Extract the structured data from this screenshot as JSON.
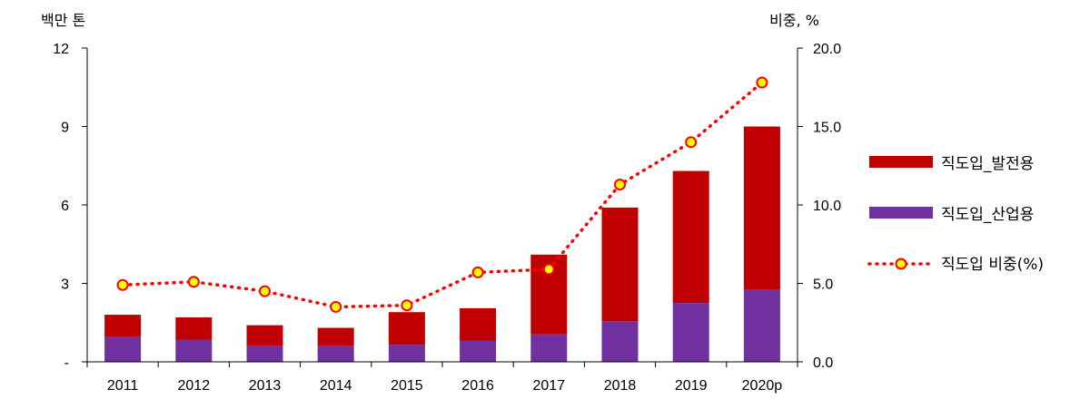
{
  "chart_data": {
    "type": "bar",
    "categories": [
      "2011",
      "2012",
      "2013",
      "2014",
      "2015",
      "2016",
      "2017",
      "2018",
      "2019",
      "2020p"
    ],
    "series": [
      {
        "name": "직도입_발전용",
        "kind": "bar-stacked",
        "axis": "left",
        "color": "#C00000",
        "values": [
          0.85,
          0.85,
          0.8,
          0.7,
          1.25,
          1.25,
          3.05,
          4.35,
          5.05,
          6.25
        ]
      },
      {
        "name": "직도입_산업용",
        "kind": "bar-stacked",
        "axis": "left",
        "color": "#7030A0",
        "values": [
          0.95,
          0.85,
          0.6,
          0.6,
          0.65,
          0.8,
          1.05,
          1.55,
          2.25,
          2.75
        ]
      },
      {
        "name": "직도입 비중(%)",
        "kind": "line",
        "axis": "right",
        "color": "#FF0000",
        "marker_fill": "#FFFF00",
        "values": [
          4.9,
          5.1,
          4.5,
          3.5,
          3.6,
          5.7,
          5.9,
          11.3,
          14.0,
          17.8
        ]
      }
    ],
    "y_left": {
      "unit": "백만 톤",
      "ylim": [
        0,
        12
      ],
      "ticks": [
        "-",
        "3",
        "6",
        "9",
        "12"
      ]
    },
    "y_right": {
      "unit": "비중, %",
      "ylim": [
        0,
        20
      ],
      "ticks": [
        "0.0",
        "5.0",
        "10.0",
        "15.0",
        "20.0"
      ]
    },
    "grid": false,
    "legend_position": "right"
  }
}
